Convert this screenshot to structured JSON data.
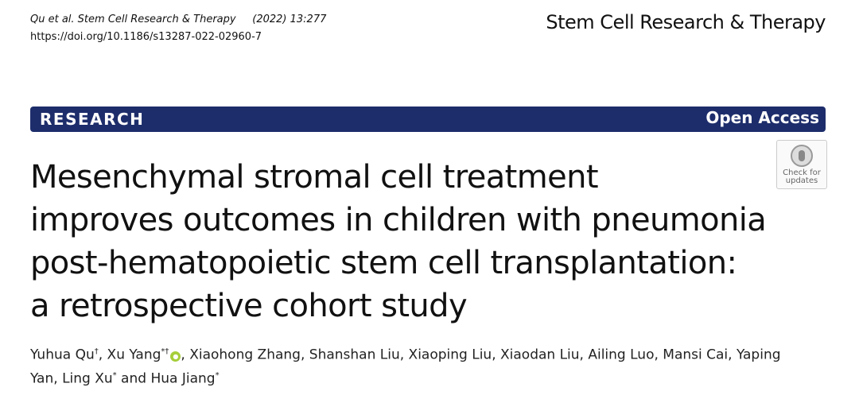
{
  "header": {
    "citation": "Qu et al. Stem Cell Research & Therapy",
    "issue": "(2022) 13:277",
    "doi": "https://doi.org/10.1186/s13287-022-02960-7",
    "journal": "Stem Cell Research & Therapy"
  },
  "banner": {
    "label": "RESEARCH",
    "access": "Open Access"
  },
  "check_updates": [
    "Check for",
    "updates"
  ],
  "title": [
    "Mesenchymal stromal cell treatment",
    "improves outcomes in children with pneumonia",
    "post-hematopoietic stem cell transplantation:",
    "a retrospective cohort study"
  ],
  "authors": [
    {
      "name": "Yuhua Qu",
      "mark": "†",
      "sep": ", "
    },
    {
      "name": "Xu Yang",
      "mark": "*†",
      "orcid": true,
      "sep": ", "
    },
    {
      "name": "Xiaohong Zhang",
      "sep": ", "
    },
    {
      "name": "Shanshan Liu",
      "sep": ", "
    },
    {
      "name": "Xiaoping Liu",
      "sep": ", "
    },
    {
      "name": "Xiaodan Liu",
      "sep": ", "
    },
    {
      "name": "Ailing Luo",
      "sep": ", "
    },
    {
      "name": "Mansi Cai",
      "sep": ", "
    },
    {
      "name": "Yaping Yan",
      "sep": ", "
    },
    {
      "name": "Ling Xu",
      "mark": "*",
      "sep": " and "
    },
    {
      "name": "Hua Jiang",
      "mark": "*"
    }
  ]
}
